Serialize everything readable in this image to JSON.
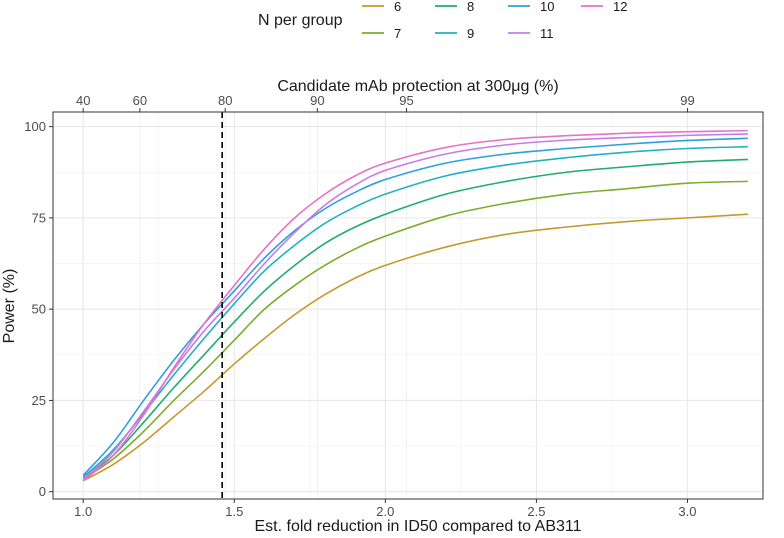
{
  "chart_data": {
    "type": "line",
    "legend": {
      "title": "N per group",
      "position": "top"
    },
    "xlabel": "Est. fold reduction in ID50 compared to AB311",
    "xlim": [
      0.9,
      3.25
    ],
    "x_ticks": [
      1.0,
      1.5,
      2.0,
      2.5,
      3.0
    ],
    "x_tick_labels": [
      "1.0",
      "1.5",
      "2.0",
      "2.5",
      "3.0"
    ],
    "ylabel": "Power (%)",
    "ylim": [
      -2,
      104
    ],
    "y_ticks": [
      0,
      25,
      50,
      75,
      100
    ],
    "y_tick_labels": [
      "0",
      "25",
      "50",
      "75",
      "100"
    ],
    "secondary_x_axis": {
      "label": "Candidate mAb protection at 300μg (%)",
      "tick_positions": [
        1.0,
        1.1875,
        1.47,
        1.775,
        2.07,
        3.0
      ],
      "tick_labels": [
        "40",
        "60",
        "80",
        "90",
        "95",
        "99"
      ]
    },
    "vline": {
      "x": 1.46,
      "style": "dashed",
      "color": "#000000"
    },
    "grid": true,
    "x": [
      1.0,
      1.1,
      1.2,
      1.3,
      1.4,
      1.5,
      1.6,
      1.7,
      1.8,
      1.9,
      2.0,
      2.2,
      2.4,
      2.6,
      2.8,
      3.0,
      3.2
    ],
    "series": [
      {
        "name": "6",
        "color": "#C49A2C",
        "values": [
          3,
          7.5,
          13.5,
          20.5,
          27.5,
          35,
          42,
          48.5,
          54,
          58.5,
          62,
          67,
          70.5,
          72.5,
          74,
          75,
          76
        ]
      },
      {
        "name": "7",
        "color": "#7CAE2A",
        "values": [
          3.5,
          9,
          16.5,
          25,
          33,
          41.5,
          50,
          56.5,
          62,
          66.5,
          70,
          75.5,
          79,
          81.5,
          83,
          84.5,
          85
        ]
      },
      {
        "name": "8",
        "color": "#1FAE6A",
        "values": [
          3.8,
          10,
          19,
          28.5,
          37.5,
          46.5,
          55,
          62,
          68,
          72.5,
          76,
          81.5,
          85,
          87.5,
          89,
          90.3,
          91
        ]
      },
      {
        "name": "9",
        "color": "#1EB3BE",
        "values": [
          4,
          11.5,
          21.5,
          32,
          42,
          51.5,
          60.5,
          67.5,
          73.5,
          78,
          81.5,
          86.5,
          89.5,
          91.5,
          93,
          94,
          94.5
        ]
      },
      {
        "name": "10",
        "color": "#2E9FE0",
        "values": [
          4.5,
          13.5,
          25,
          36,
          46,
          55,
          64,
          71.5,
          77.5,
          82,
          85.5,
          90,
          92.5,
          94,
          95.2,
          96.2,
          96.8
        ]
      },
      {
        "name": "11",
        "color": "#C77CE8",
        "values": [
          3.5,
          11,
          22,
          33.5,
          44,
          53,
          62.5,
          71,
          78.5,
          84,
          88,
          92.5,
          95,
          96.3,
          97,
          97.6,
          98
        ]
      },
      {
        "name": "12",
        "color": "#E872C8",
        "values": [
          3,
          10,
          21,
          34,
          46,
          56.5,
          66.5,
          75,
          81.5,
          86.5,
          90,
          94.3,
          96.5,
          97.5,
          98.2,
          98.6,
          98.9
        ]
      }
    ]
  }
}
